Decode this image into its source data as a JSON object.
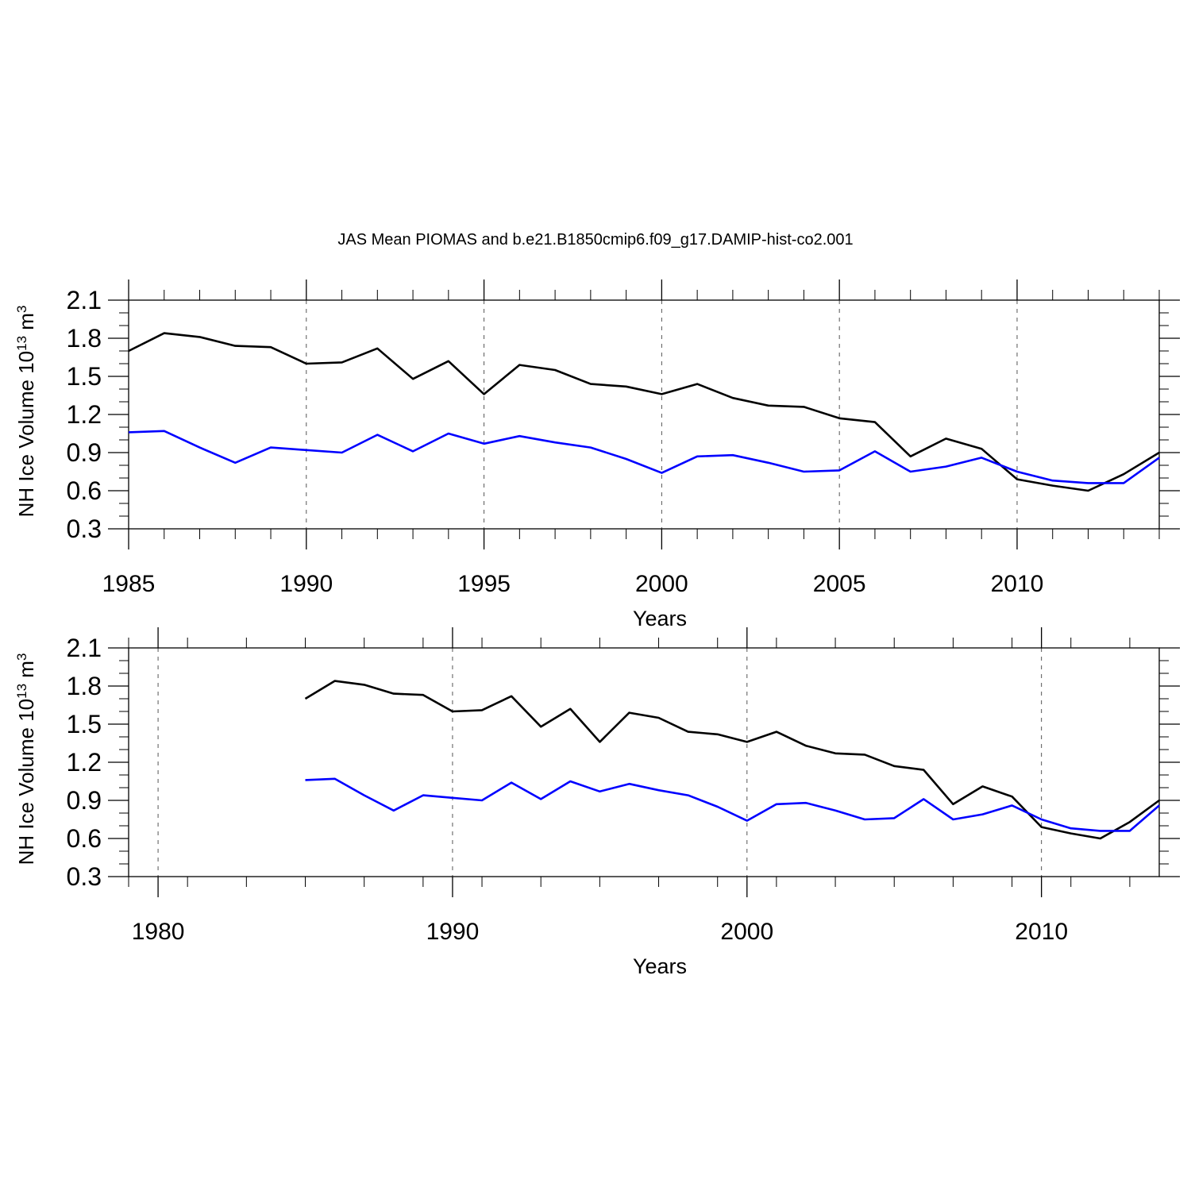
{
  "title": "JAS Mean PIOMAS and b.e21.B1850cmip6.f09_g17.DAMIP-hist-co2.001",
  "colors": {
    "series_1": "#000000",
    "series_2": "#0000ff",
    "axes": "#000000",
    "grid": "#555555"
  },
  "chart_data": [
    {
      "type": "line",
      "xlabel": "Years",
      "ylabel": "NH Ice Volume 10",
      "ylabel_exp": "13",
      "ylabel_unit": " m",
      "ylabel_unit_exp": "3",
      "xlim": [
        1985,
        2014
      ],
      "ylim": [
        0.3,
        2.1
      ],
      "xticks": [
        1985,
        1990,
        1995,
        2000,
        2005,
        2010
      ],
      "xtick_labels": [
        "1985",
        "1990",
        "1995",
        "2000",
        "2005",
        "2010"
      ],
      "xminor_step": 1,
      "yticks": [
        0.3,
        0.6,
        0.9,
        1.2,
        1.5,
        1.8,
        2.1
      ],
      "ytick_labels": [
        "0.3",
        "0.6",
        "0.9",
        "1.2",
        "1.5",
        "1.8",
        "2.1"
      ],
      "yminor_step": 0.1,
      "grid": "vertical-dashed-at-major-x",
      "x": [
        1985,
        1986,
        1987,
        1988,
        1989,
        1990,
        1991,
        1992,
        1993,
        1994,
        1995,
        1996,
        1997,
        1998,
        1999,
        2000,
        2001,
        2002,
        2003,
        2004,
        2005,
        2006,
        2007,
        2008,
        2009,
        2010,
        2011,
        2012,
        2013,
        2014
      ],
      "series": [
        {
          "color": "#000000",
          "values": [
            1.7,
            1.84,
            1.81,
            1.74,
            1.73,
            1.6,
            1.61,
            1.72,
            1.48,
            1.62,
            1.36,
            1.59,
            1.55,
            1.44,
            1.42,
            1.36,
            1.44,
            1.33,
            1.27,
            1.26,
            1.17,
            1.14,
            0.87,
            1.01,
            0.93,
            0.69,
            0.64,
            0.6,
            0.73,
            0.9
          ]
        },
        {
          "color": "#0000ff",
          "values": [
            1.06,
            1.07,
            0.94,
            0.82,
            0.94,
            0.92,
            0.9,
            1.04,
            0.91,
            1.05,
            0.97,
            1.03,
            0.98,
            0.94,
            0.85,
            0.74,
            0.87,
            0.88,
            0.82,
            0.75,
            0.76,
            0.91,
            0.75,
            0.79,
            0.86,
            0.75,
            0.68,
            0.66,
            0.66,
            0.86
          ]
        }
      ]
    },
    {
      "type": "line",
      "xlabel": "Years",
      "ylabel": "NH Ice Volume 10",
      "ylabel_exp": "13",
      "ylabel_unit": " m",
      "ylabel_unit_exp": "3",
      "xlim": [
        1979,
        2014
      ],
      "ylim": [
        0.3,
        2.1
      ],
      "xticks": [
        1980,
        1990,
        2000,
        2010
      ],
      "xtick_labels": [
        "1980",
        "1990",
        "2000",
        "2010"
      ],
      "xminor_step": 2,
      "yticks": [
        0.3,
        0.6,
        0.9,
        1.2,
        1.5,
        1.8,
        2.1
      ],
      "ytick_labels": [
        "0.3",
        "0.6",
        "0.9",
        "1.2",
        "1.5",
        "1.8",
        "2.1"
      ],
      "yminor_step": 0.1,
      "grid": "vertical-dashed-at-major-x",
      "x": [
        1985,
        1986,
        1987,
        1988,
        1989,
        1990,
        1991,
        1992,
        1993,
        1994,
        1995,
        1996,
        1997,
        1998,
        1999,
        2000,
        2001,
        2002,
        2003,
        2004,
        2005,
        2006,
        2007,
        2008,
        2009,
        2010,
        2011,
        2012,
        2013,
        2014
      ],
      "series": [
        {
          "color": "#000000",
          "values": [
            1.7,
            1.84,
            1.81,
            1.74,
            1.73,
            1.6,
            1.61,
            1.72,
            1.48,
            1.62,
            1.36,
            1.59,
            1.55,
            1.44,
            1.42,
            1.36,
            1.44,
            1.33,
            1.27,
            1.26,
            1.17,
            1.14,
            0.87,
            1.01,
            0.93,
            0.69,
            0.64,
            0.6,
            0.73,
            0.9
          ]
        },
        {
          "color": "#0000ff",
          "values": [
            1.06,
            1.07,
            0.94,
            0.82,
            0.94,
            0.92,
            0.9,
            1.04,
            0.91,
            1.05,
            0.97,
            1.03,
            0.98,
            0.94,
            0.85,
            0.74,
            0.87,
            0.88,
            0.82,
            0.75,
            0.76,
            0.91,
            0.75,
            0.79,
            0.86,
            0.75,
            0.68,
            0.66,
            0.66,
            0.86
          ]
        }
      ]
    }
  ]
}
